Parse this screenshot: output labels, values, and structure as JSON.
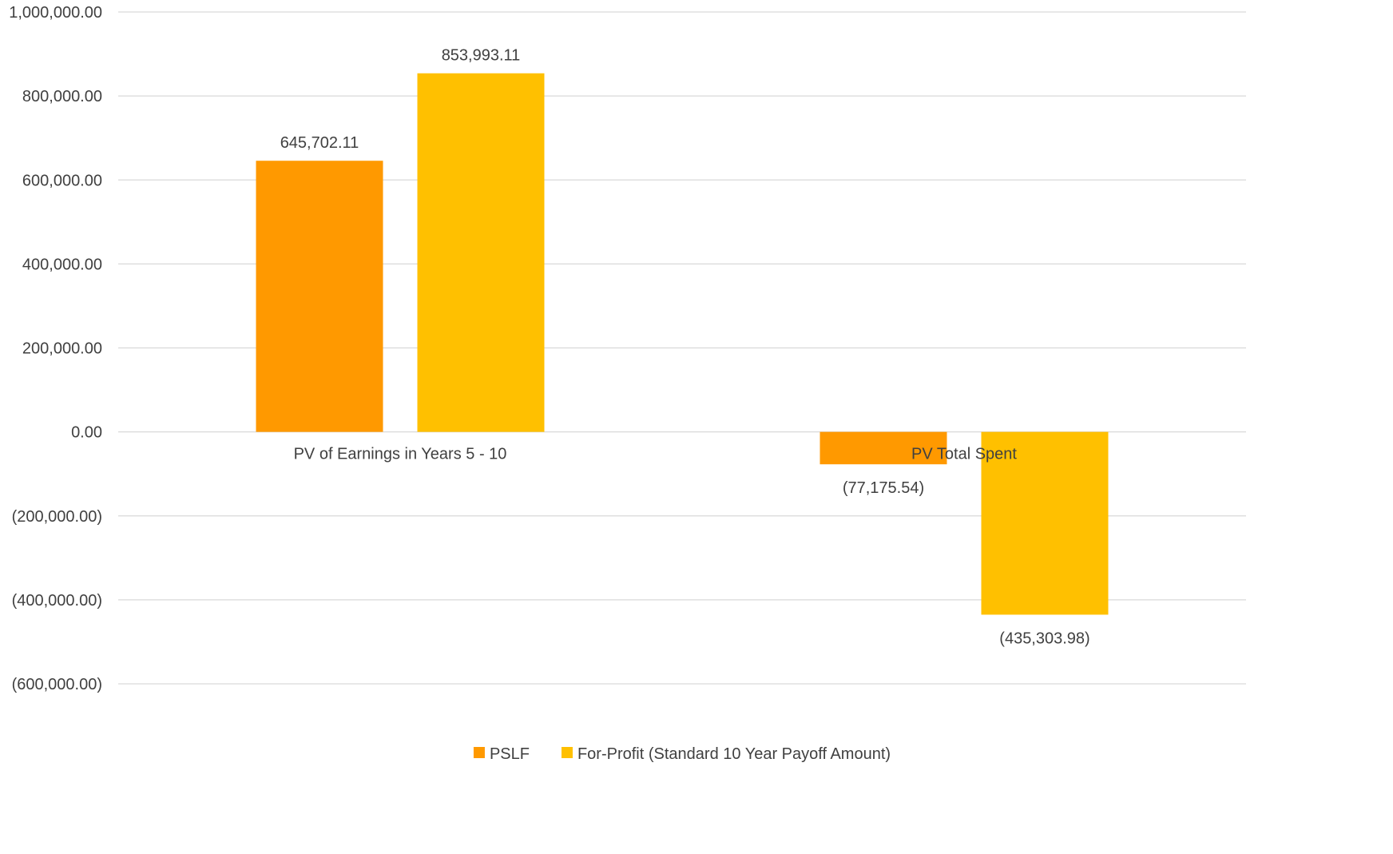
{
  "chart_data": {
    "type": "bar",
    "title": "",
    "xlabel": "",
    "ylabel": "",
    "categories": [
      "PV of Earnings in Years 5 - 10",
      "PV Total Spent"
    ],
    "series": [
      {
        "name": "PSLF",
        "color": "#FF9900",
        "values": [
          645702.11,
          -77175.54
        ],
        "value_labels": [
          "645,702.11",
          "(77,175.54)"
        ]
      },
      {
        "name": "For-Profit (Standard 10 Year Payoff Amount)",
        "color": "#FFC000",
        "values": [
          853993.11,
          -435303.98
        ],
        "value_labels": [
          "853,993.11",
          "(435,303.98)"
        ]
      }
    ],
    "ylim": [
      -600000,
      1000000
    ],
    "y_ticks": [
      1000000,
      800000,
      600000,
      400000,
      200000,
      0,
      -200000,
      -400000,
      -600000
    ],
    "y_tick_labels": [
      "1,000,000.00",
      "800,000.00",
      "600,000.00",
      "400,000.00",
      "200,000.00",
      "0.00",
      "(200,000.00)",
      "(400,000.00)",
      "(600,000.00)"
    ],
    "grid": true,
    "legend_position": "bottom"
  }
}
